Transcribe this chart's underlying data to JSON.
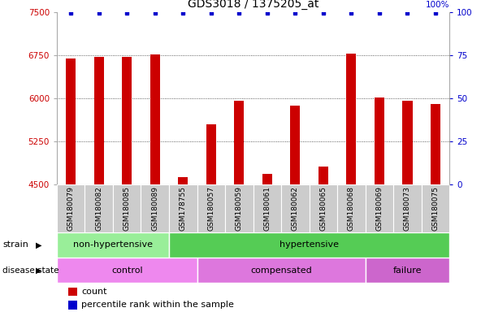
{
  "title": "GDS3018 / 1375205_at",
  "samples": [
    "GSM180079",
    "GSM180082",
    "GSM180085",
    "GSM180089",
    "GSM178755",
    "GSM180057",
    "GSM180059",
    "GSM180061",
    "GSM180062",
    "GSM180065",
    "GSM180068",
    "GSM180069",
    "GSM180073",
    "GSM180075"
  ],
  "counts": [
    6700,
    6720,
    6720,
    6760,
    4620,
    5550,
    5950,
    4680,
    5870,
    4800,
    6780,
    6020,
    5950,
    5900
  ],
  "ylim_left": [
    4500,
    7500
  ],
  "ylim_right": [
    0,
    100
  ],
  "yticks_left": [
    4500,
    5250,
    6000,
    6750,
    7500
  ],
  "yticks_right": [
    0,
    25,
    50,
    75,
    100
  ],
  "bar_color": "#cc0000",
  "dot_color": "#0000cc",
  "strain_groups": [
    {
      "label": "non-hypertensive",
      "start": 0,
      "end": 4,
      "color": "#99ee99"
    },
    {
      "label": "hypertensive",
      "start": 4,
      "end": 14,
      "color": "#55cc55"
    }
  ],
  "disease_groups": [
    {
      "label": "control",
      "start": 0,
      "end": 5,
      "color": "#ee88ee"
    },
    {
      "label": "compensated",
      "start": 5,
      "end": 11,
      "color": "#dd77dd"
    },
    {
      "label": "failure",
      "start": 11,
      "end": 14,
      "color": "#cc66cc"
    }
  ],
  "legend_count_label": "count",
  "legend_percentile_label": "percentile rank within the sample",
  "strain_label": "strain",
  "disease_label": "disease state",
  "bar_width": 0.35,
  "tick_color_left": "#cc0000",
  "tick_color_right": "#0000cc",
  "grid_dotted_color": "#333333",
  "xticklabel_bg": "#cccccc"
}
